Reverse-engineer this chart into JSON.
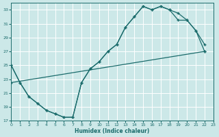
{
  "xlabel": "Humidex (Indice chaleur)",
  "bg_color": "#cce8e8",
  "grid_color": "#ffffff",
  "line_color": "#1a6b6b",
  "ylim": [
    17,
    34
  ],
  "xlim": [
    0,
    23
  ],
  "yticks": [
    17,
    19,
    21,
    23,
    25,
    27,
    29,
    31,
    33
  ],
  "xticks": [
    0,
    1,
    2,
    3,
    4,
    5,
    6,
    7,
    8,
    9,
    10,
    11,
    12,
    13,
    14,
    15,
    16,
    17,
    18,
    19,
    20,
    21,
    22,
    23
  ],
  "line1_x": [
    0,
    1,
    2,
    3,
    4,
    5,
    6,
    7,
    8,
    9,
    10,
    11,
    12,
    13,
    14,
    15,
    16,
    17,
    18,
    19,
    20,
    21,
    22
  ],
  "line1_y": [
    25.0,
    22.5,
    20.5,
    19.5,
    18.5,
    18.0,
    17.5,
    17.5,
    22.5,
    24.5,
    25.5,
    27.0,
    28.0,
    30.5,
    32.0,
    33.5,
    33.0,
    33.5,
    33.0,
    32.5,
    31.5,
    30.0,
    28.0
  ],
  "line2_x": [
    0,
    1,
    2,
    3,
    4,
    5,
    6,
    7,
    8,
    9,
    10,
    11,
    12,
    13,
    14,
    15,
    16,
    17,
    18,
    19,
    20,
    21,
    22
  ],
  "line2_y": [
    25.0,
    22.5,
    20.5,
    19.5,
    18.5,
    18.0,
    17.5,
    17.5,
    22.5,
    24.5,
    25.5,
    27.0,
    28.0,
    30.5,
    32.0,
    33.5,
    33.0,
    33.5,
    33.0,
    31.5,
    31.5,
    30.0,
    27.0
  ],
  "line3_x": [
    0,
    22
  ],
  "line3_y": [
    22.5,
    27.0
  ]
}
